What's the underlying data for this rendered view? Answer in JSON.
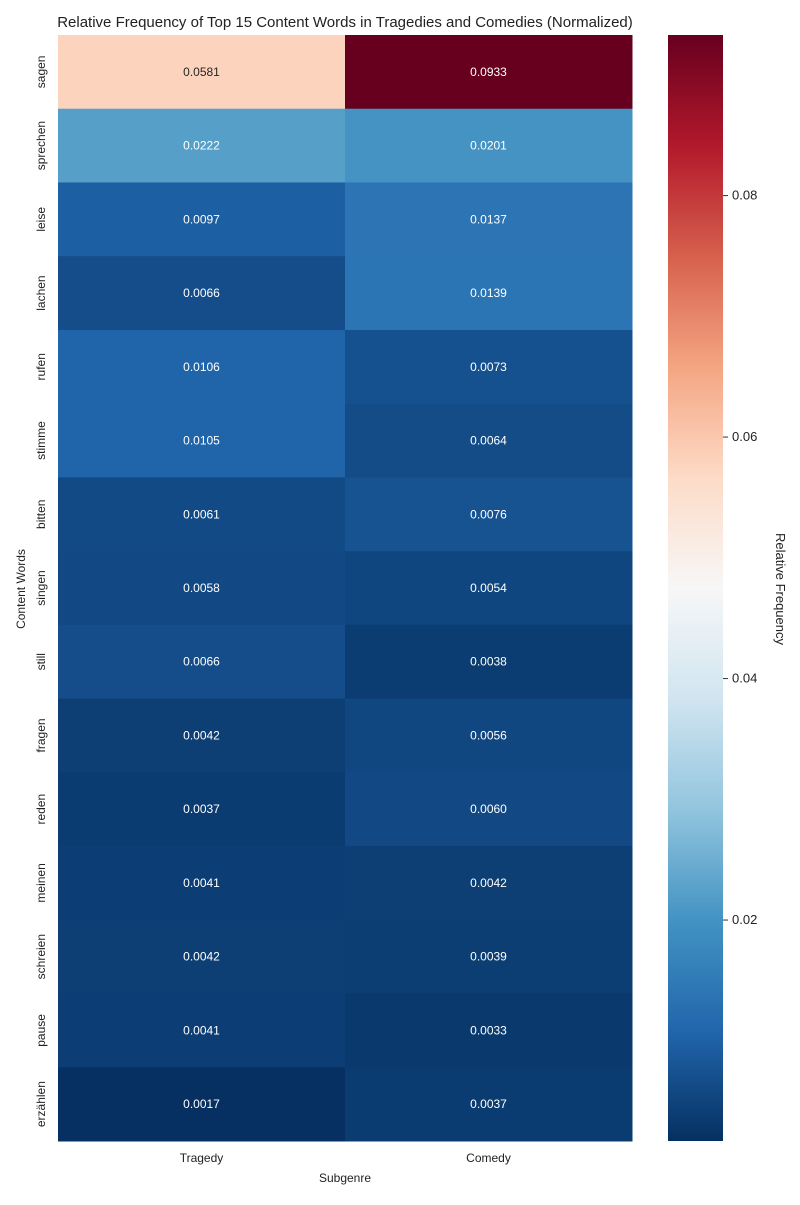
{
  "chart_data": {
    "type": "heatmap",
    "title": "Relative Frequency of Top 15 Content Words in Tragedies and Comedies (Normalized)",
    "xlabel": "Subgenre",
    "ylabel": "Content Words",
    "x_categories": [
      "Tragedy",
      "Comedy"
    ],
    "y_categories": [
      "sagen",
      "sprechen",
      "leise",
      "lachen",
      "rufen",
      "stimme",
      "bitten",
      "singen",
      "still",
      "fragen",
      "reden",
      "meinen",
      "schreien",
      "pause",
      "erzählen"
    ],
    "values": [
      [
        0.0581,
        0.0933
      ],
      [
        0.0222,
        0.0201
      ],
      [
        0.0097,
        0.0137
      ],
      [
        0.0066,
        0.0139
      ],
      [
        0.0106,
        0.0073
      ],
      [
        0.0105,
        0.0064
      ],
      [
        0.0061,
        0.0076
      ],
      [
        0.0058,
        0.0054
      ],
      [
        0.0066,
        0.0038
      ],
      [
        0.0042,
        0.0056
      ],
      [
        0.0037,
        0.006
      ],
      [
        0.0041,
        0.0042
      ],
      [
        0.0042,
        0.0039
      ],
      [
        0.0041,
        0.0033
      ],
      [
        0.0017,
        0.0037
      ]
    ],
    "colorbar": {
      "label": "Relative Frequency",
      "colormap": "RdBu_r",
      "range": [
        0.0017,
        0.0933
      ],
      "ticks": [
        0.02,
        0.04,
        0.06,
        0.08
      ],
      "tick_labels": [
        "0.02",
        "0.04",
        "0.06",
        "0.08"
      ]
    },
    "annotation_format": "4 decimals"
  }
}
